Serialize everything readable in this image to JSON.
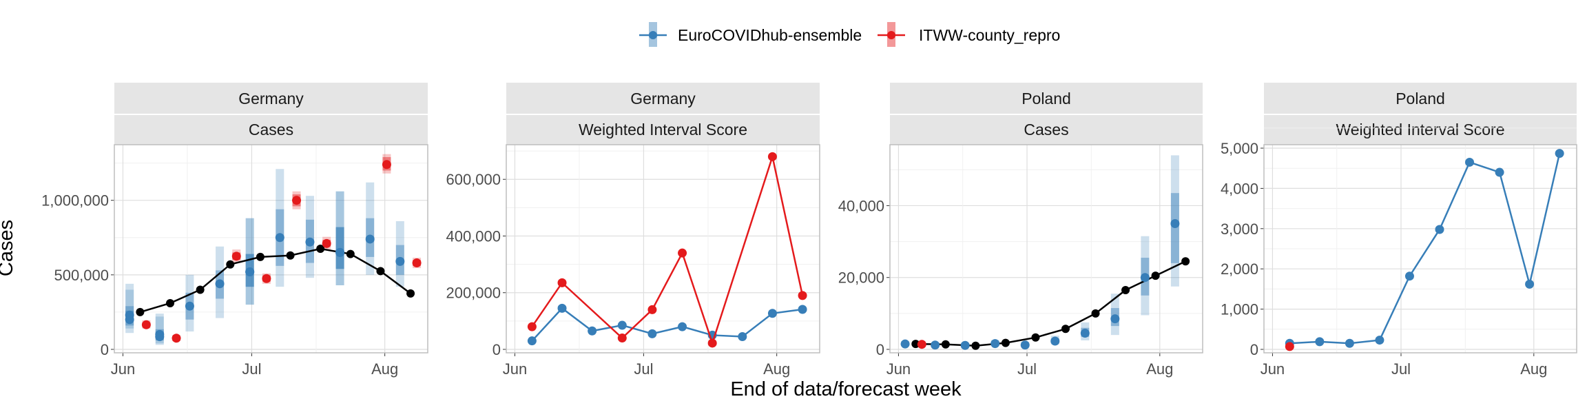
{
  "legend": {
    "items": [
      {
        "label": "EuroCOVIDhub-ensemble",
        "color": "#377eb8"
      },
      {
        "label": "ITWW-county_repro",
        "color": "#e41a1c"
      }
    ]
  },
  "axes": {
    "xlabel": "End of data/forecast week",
    "ylabel": "Cases"
  },
  "chart_data": [
    {
      "type": "line",
      "location": "Germany",
      "measure": "Cases",
      "x_ticks": [
        "Jun",
        "Jul",
        "Aug"
      ],
      "y_ticks": [
        "0",
        "500,000",
        "1,000,000"
      ],
      "ylim": [
        0,
        1350000
      ],
      "grid": true,
      "observed": {
        "dates": [
          "2021-06-05",
          "2021-06-12",
          "2021-06-19",
          "2021-06-26",
          "2021-07-03",
          "2021-07-10",
          "2021-07-17",
          "2021-07-24",
          "2021-07-31",
          "2021-08-07"
        ],
        "values": [
          250000,
          310000,
          400000,
          570000,
          620000,
          630000,
          675000,
          640000,
          525000,
          375000
        ]
      },
      "series": [
        {
          "name": "EuroCOVIDhub-ensemble",
          "dates": [
            "2021-06-04",
            "2021-06-04",
            "2021-06-11",
            "2021-06-11",
            "2021-06-18",
            "2021-06-25",
            "2021-07-02",
            "2021-07-02",
            "2021-07-09",
            "2021-07-16",
            "2021-07-23",
            "2021-07-23",
            "2021-07-30",
            "2021-08-06"
          ],
          "median": [
            200000,
            230000,
            100000,
            85000,
            290000,
            440000,
            520000,
            520000,
            750000,
            720000,
            650000,
            650000,
            740000,
            590000
          ],
          "inner": [
            [
              160000,
              260000
            ],
            [
              190000,
              290000
            ],
            [
              70000,
              135000
            ],
            [
              60000,
              120000
            ],
            [
              200000,
              380000
            ],
            [
              340000,
              530000
            ],
            [
              420000,
              640000
            ],
            [
              420000,
              640000
            ],
            [
              560000,
              940000
            ],
            [
              580000,
              870000
            ],
            [
              540000,
              820000
            ],
            [
              540000,
              820000
            ],
            [
              620000,
              880000
            ],
            [
              500000,
              700000
            ]
          ],
          "outer": [
            [
              110000,
              440000
            ],
            [
              140000,
              400000
            ],
            [
              40000,
              240000
            ],
            [
              30000,
              220000
            ],
            [
              120000,
              500000
            ],
            [
              210000,
              690000
            ],
            [
              300000,
              880000
            ],
            [
              300000,
              880000
            ],
            [
              420000,
              1210000
            ],
            [
              480000,
              1030000
            ],
            [
              430000,
              1060000
            ],
            [
              430000,
              1060000
            ],
            [
              500000,
              1120000
            ],
            [
              420000,
              860000
            ]
          ]
        },
        {
          "name": "ITWW-county_repro",
          "dates": [
            "2021-06-05",
            "2021-06-12",
            "2021-06-26",
            "2021-07-03",
            "2021-07-10",
            "2021-07-17",
            "2021-07-31",
            "2021-08-07"
          ],
          "median": [
            165000,
            75000,
            625000,
            475000,
            1000000,
            710000,
            1240000,
            580000
          ],
          "inner": [
            [
              150000,
              180000
            ],
            [
              65000,
              85000
            ],
            [
              600000,
              650000
            ],
            [
              455000,
              495000
            ],
            [
              960000,
              1040000
            ],
            [
              690000,
              735000
            ],
            [
              1200000,
              1290000
            ],
            [
              560000,
              600000
            ]
          ],
          "outer": [
            [
              140000,
              195000
            ],
            [
              55000,
              95000
            ],
            [
              580000,
              670000
            ],
            [
              440000,
              510000
            ],
            [
              940000,
              1060000
            ],
            [
              670000,
              755000
            ],
            [
              1180000,
              1310000
            ],
            [
              545000,
              615000
            ]
          ]
        }
      ]
    },
    {
      "type": "line",
      "location": "Germany",
      "measure": "Weighted Interval Score",
      "x_ticks": [
        "Jun",
        "Jul",
        "Aug"
      ],
      "y_ticks": [
        "0",
        "200,000",
        "400,000",
        "600,000"
      ],
      "ylim": [
        0,
        710000
      ],
      "grid": true,
      "series": [
        {
          "name": "EuroCOVIDhub-ensemble",
          "dates": [
            "2021-06-05",
            "2021-06-12",
            "2021-06-19",
            "2021-06-26",
            "2021-07-03",
            "2021-07-10",
            "2021-07-17",
            "2021-07-24",
            "2021-07-31",
            "2021-08-07"
          ],
          "values": [
            30000,
            145000,
            65000,
            85000,
            55000,
            80000,
            50000,
            45000,
            127000,
            141000
          ]
        },
        {
          "name": "ITWW-county_repro",
          "dates": [
            "2021-06-05",
            "2021-06-12",
            "2021-06-26",
            "2021-07-03",
            "2021-07-10",
            "2021-07-17",
            "2021-07-31",
            "2021-08-07"
          ],
          "values": [
            80000,
            235000,
            40000,
            140000,
            340000,
            22000,
            680000,
            190000
          ]
        }
      ]
    },
    {
      "type": "line",
      "location": "Poland",
      "measure": "Cases",
      "x_ticks": [
        "Jun",
        "Jul",
        "Aug"
      ],
      "y_ticks": [
        "0",
        "20,000",
        "40,000"
      ],
      "ylim": [
        0,
        56000
      ],
      "grid": true,
      "observed": {
        "dates": [
          "2021-06-05",
          "2021-06-12",
          "2021-06-19",
          "2021-06-26",
          "2021-07-03",
          "2021-07-10",
          "2021-07-17",
          "2021-07-24",
          "2021-07-31",
          "2021-08-07"
        ],
        "values": [
          1500,
          1400,
          1000,
          1800,
          3300,
          5700,
          10000,
          16500,
          20500,
          24500
        ]
      },
      "series": [
        {
          "name": "EuroCOVIDhub-ensemble",
          "dates": [
            "2021-06-04",
            "2021-06-11",
            "2021-06-18",
            "2021-06-25",
            "2021-07-02",
            "2021-07-09",
            "2021-07-16",
            "2021-07-23",
            "2021-07-30",
            "2021-08-06"
          ],
          "median": [
            1500,
            1200,
            1100,
            1600,
            1200,
            2300,
            4500,
            8500,
            20000,
            35000
          ],
          "inner": [
            [
              1200,
              1900
            ],
            [
              1000,
              1500
            ],
            [
              900,
              1400
            ],
            [
              1300,
              2000
            ],
            [
              900,
              1600
            ],
            [
              1800,
              3000
            ],
            [
              3500,
              6000
            ],
            [
              6500,
              11500
            ],
            [
              15000,
              25500
            ],
            [
              24000,
              43500
            ]
          ],
          "outer": [
            [
              900,
              2300
            ],
            [
              800,
              1900
            ],
            [
              700,
              1700
            ],
            [
              1000,
              2600
            ],
            [
              700,
              2100
            ],
            [
              1400,
              3800
            ],
            [
              2500,
              7500
            ],
            [
              4000,
              15500
            ],
            [
              9500,
              31500
            ],
            [
              17500,
              54000
            ]
          ]
        },
        {
          "name": "ITWW-county_repro",
          "dates": [
            "2021-06-05"
          ],
          "median": [
            1400
          ],
          "inner": [
            [
              1200,
              1700
            ]
          ],
          "outer": [
            [
              1000,
              2000
            ]
          ]
        }
      ]
    },
    {
      "type": "line",
      "location": "Poland",
      "measure": "Weighted Interval Score",
      "x_ticks": [
        "Jun",
        "Jul",
        "Aug"
      ],
      "y_ticks": [
        "0",
        "1,000",
        "2,000",
        "3,000",
        "4,000",
        "5,000"
      ],
      "ylim": [
        0,
        5000
      ],
      "grid": true,
      "series": [
        {
          "name": "EuroCOVIDhub-ensemble",
          "dates": [
            "2021-06-05",
            "2021-06-12",
            "2021-06-19",
            "2021-06-26",
            "2021-07-03",
            "2021-07-10",
            "2021-07-17",
            "2021-07-24",
            "2021-07-31",
            "2021-08-07"
          ],
          "values": [
            150,
            190,
            150,
            230,
            1820,
            2980,
            4650,
            4400,
            1620,
            4870
          ]
        },
        {
          "name": "ITWW-county_repro",
          "dates": [
            "2021-06-05"
          ],
          "values": [
            70
          ]
        }
      ]
    }
  ]
}
